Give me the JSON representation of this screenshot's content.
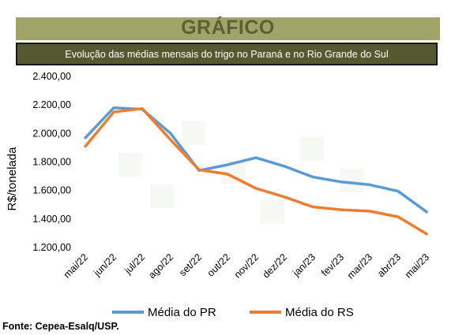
{
  "header": {
    "title": "GRÁFICO",
    "subtitle": "Evolução das médias mensais do trigo no Paraná e no Rio Grande do Sul"
  },
  "source": "Fonte: Cepea-Esalq/USP.",
  "colors": {
    "pr": "#5b9bd5",
    "rs": "#ed7d31",
    "banner": "#a0a468",
    "subtitle_bg": "#565930"
  },
  "chart_data": {
    "type": "line",
    "title": "",
    "xlabel": "",
    "ylabel": "R$/tonelada",
    "ylim": [
      1200,
      2400
    ],
    "yticks": [
      "1.200,00",
      "1.400,00",
      "1.600,00",
      "1.800,00",
      "2.000,00",
      "2.200,00",
      "2.400,00"
    ],
    "ytick_values": [
      1200,
      1400,
      1600,
      1800,
      2000,
      2200,
      2400
    ],
    "grid": false,
    "legend_position": "bottom",
    "categories": [
      "mai/22",
      "jun/22",
      "jul/22",
      "ago/22",
      "set/22",
      "out/22",
      "nov/22",
      "dez/22",
      "jan/23",
      "fev/23",
      "mar/23",
      "abr/23",
      "mai/23"
    ],
    "series": [
      {
        "name": "Média do PR",
        "color": "#5b9bd5",
        "values": [
          1970,
          2180,
          2170,
          2000,
          1740,
          1780,
          1830,
          1770,
          1695,
          1660,
          1640,
          1595,
          1450
        ]
      },
      {
        "name": "Média do RS",
        "color": "#ed7d31",
        "values": [
          1910,
          2150,
          2175,
          1955,
          1745,
          1715,
          1615,
          1555,
          1485,
          1465,
          1455,
          1415,
          1295
        ]
      }
    ]
  }
}
